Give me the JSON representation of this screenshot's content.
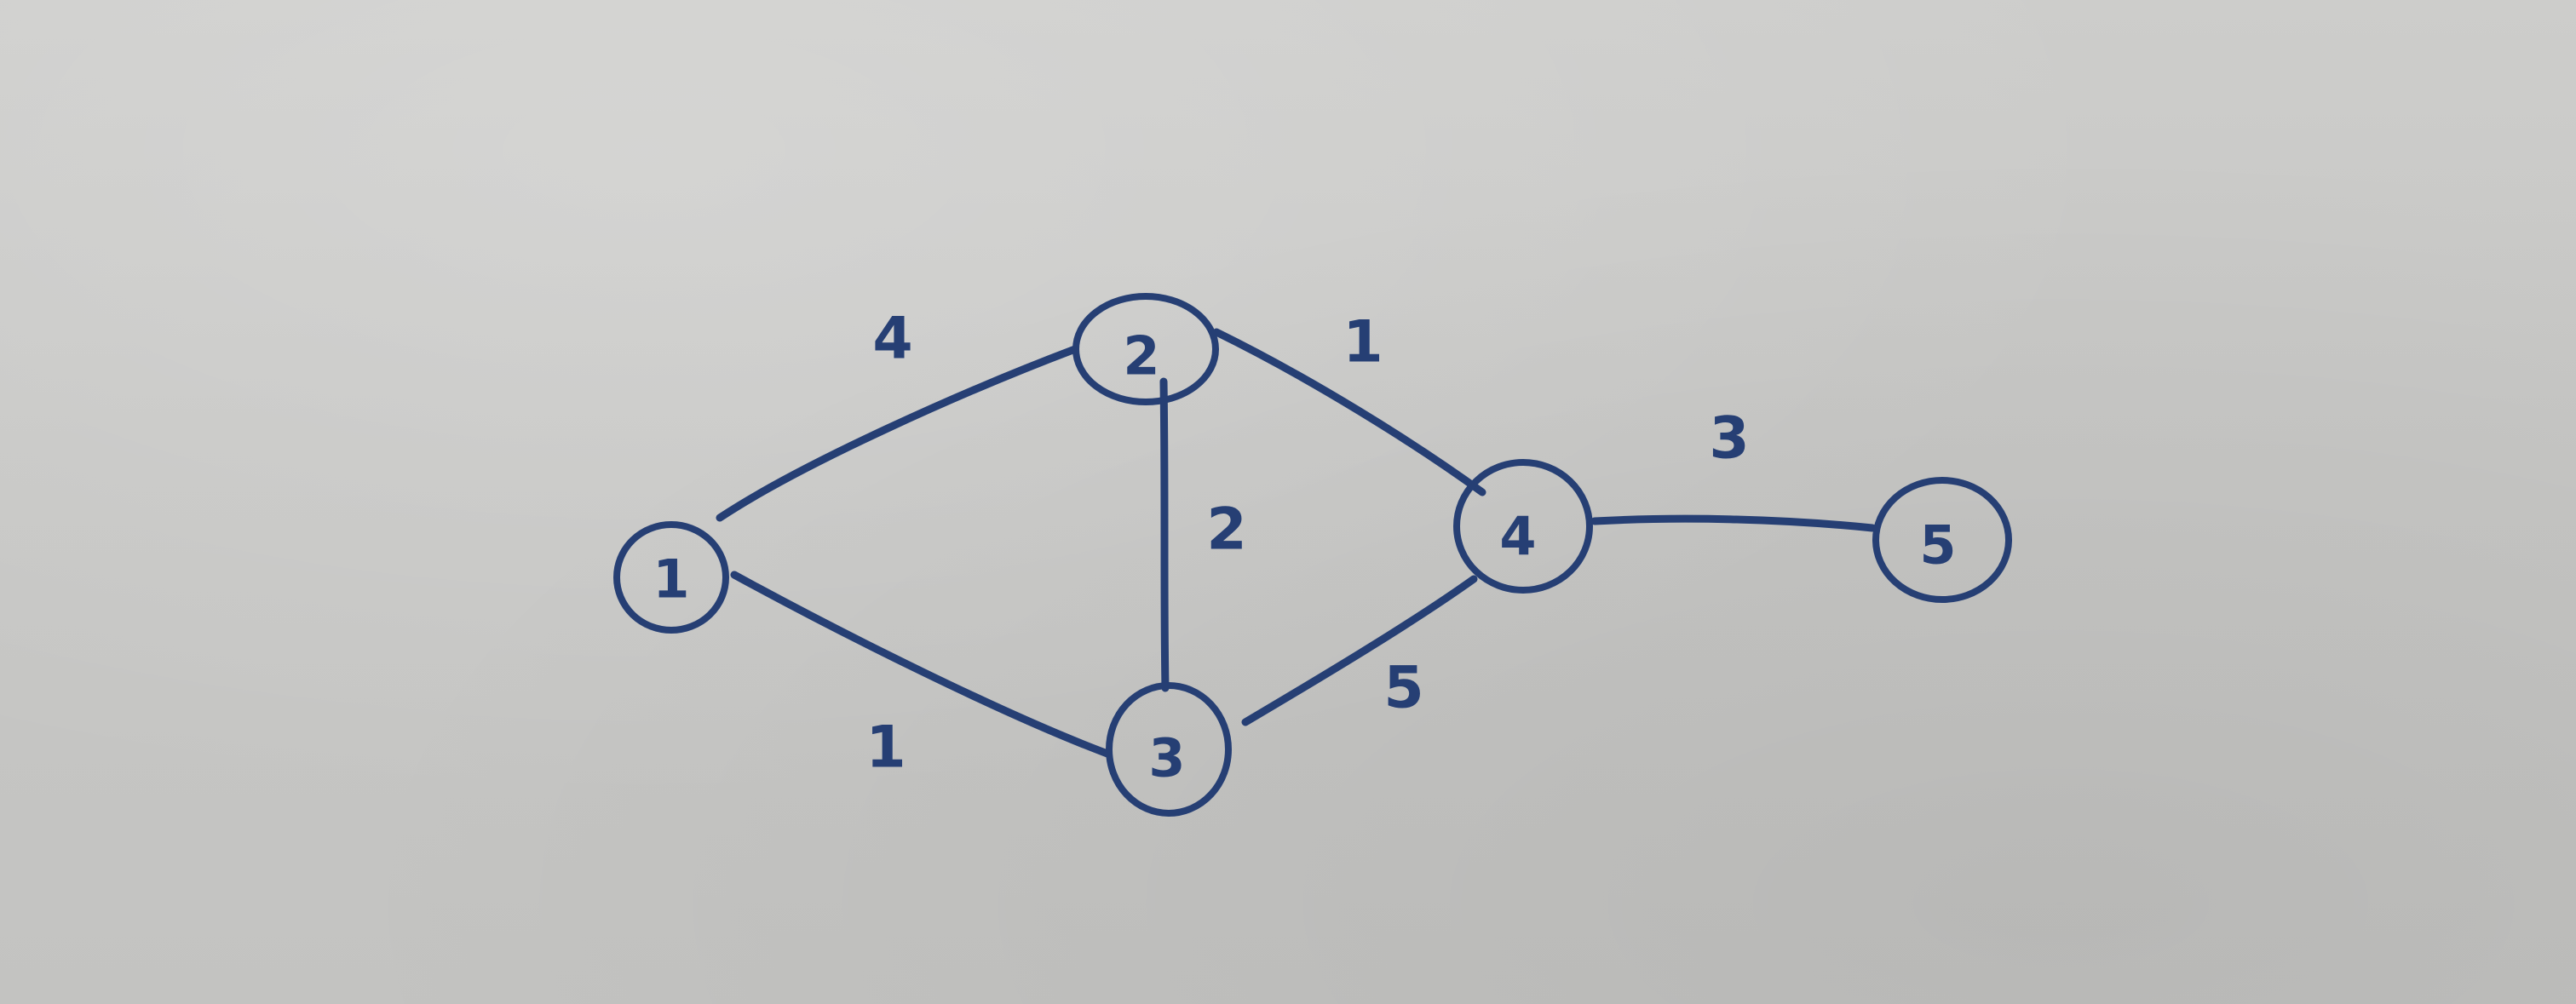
{
  "ink_color": "#263f74",
  "nodes": [
    {
      "label": "1"
    },
    {
      "label": "2"
    },
    {
      "label": "3"
    },
    {
      "label": "4"
    },
    {
      "label": "5"
    }
  ],
  "edges": [
    {
      "from": "1",
      "to": "2",
      "weight": "4"
    },
    {
      "from": "1",
      "to": "3",
      "weight": "1"
    },
    {
      "from": "2",
      "to": "3",
      "weight": "2"
    },
    {
      "from": "2",
      "to": "4",
      "weight": "1"
    },
    {
      "from": "3",
      "to": "4",
      "weight": "5"
    },
    {
      "from": "4",
      "to": "5",
      "weight": "3"
    }
  ]
}
